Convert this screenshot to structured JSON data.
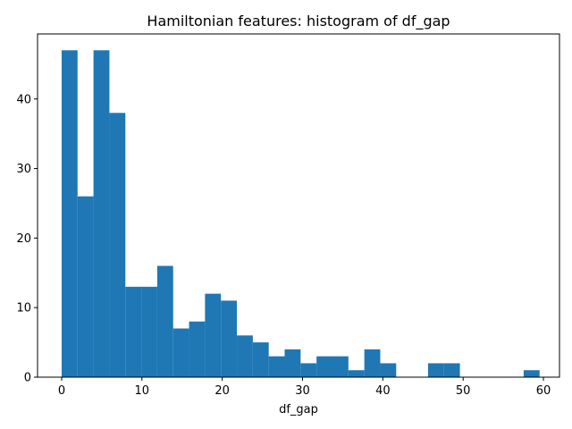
{
  "chart_data": {
    "type": "bar",
    "title": "Hamiltonian features: histogram of df_gap",
    "xlabel": "df_gap",
    "ylabel": "",
    "xlim": [
      -3,
      62
    ],
    "ylim": [
      0,
      49.35
    ],
    "x_ticks": [
      0,
      10,
      20,
      30,
      40,
      50,
      60
    ],
    "y_ticks": [
      0,
      10,
      20,
      30,
      40
    ],
    "bin_start": 0,
    "bin_width": 1.984,
    "counts": [
      47,
      26,
      47,
      38,
      13,
      13,
      16,
      7,
      8,
      12,
      11,
      6,
      5,
      3,
      4,
      2,
      3,
      3,
      1,
      4,
      2,
      0,
      0,
      2,
      2,
      0,
      0,
      0,
      0,
      1
    ],
    "grid": false,
    "legend": false,
    "bar_color": "#1f77b4"
  }
}
